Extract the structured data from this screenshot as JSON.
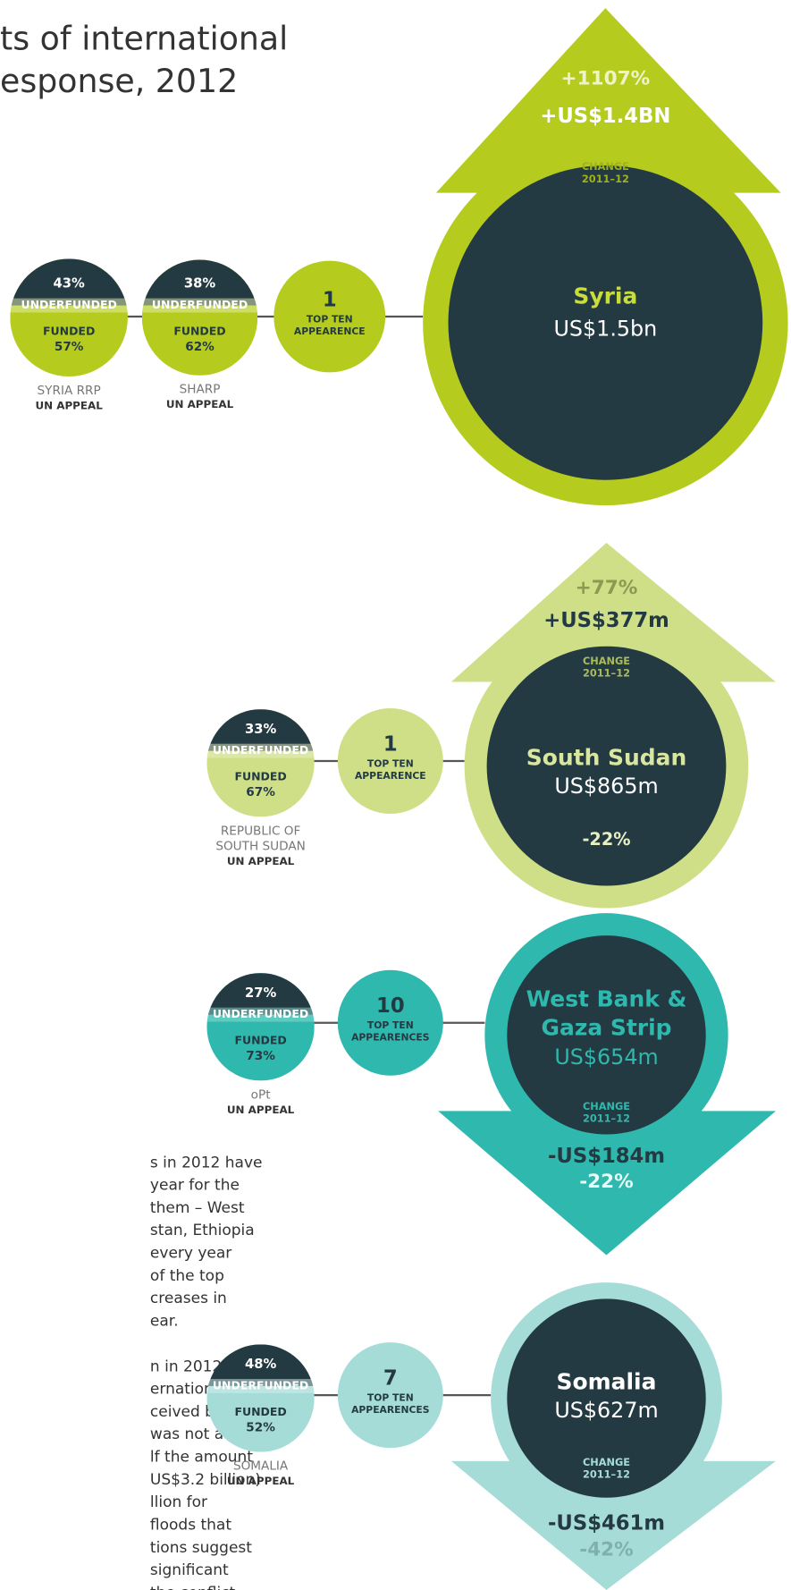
{
  "title": [
    "ts of international",
    "esponse, 2012"
  ],
  "sections": [
    {
      "country": [
        "Syria"
      ],
      "amount": "US$1.5bn",
      "change_pct": "+1107%",
      "change_abs": "+US$1.4BN",
      "change_label": [
        "CHANGE",
        "2011–12"
      ],
      "top_ten": {
        "count": "1",
        "label": [
          "TOP TEN",
          "APPEARENCE"
        ]
      },
      "appeals": [
        {
          "underfunded_pct": "43%",
          "underfunded_label": "UNDERFUNDED",
          "funded_label": "FUNDED",
          "funded_pct": "57%",
          "name": [
            "SYRIA RRP"
          ],
          "type": "UN APPEAL"
        },
        {
          "underfunded_pct": "38%",
          "underfunded_label": "UNDERFUNDED",
          "funded_label": "FUNDED",
          "funded_pct": "62%",
          "name": [
            "SHARP"
          ],
          "type": "UN APPEAL"
        }
      ]
    },
    {
      "country": [
        "South Sudan"
      ],
      "amount": "US$865m",
      "change_pct": "+77%",
      "change_abs": "+US$377m",
      "change_label": [
        "CHANGE",
        "2011–12"
      ],
      "other_pct": "-22%",
      "top_ten": {
        "count": "1",
        "label": [
          "TOP TEN",
          "APPEARENCE"
        ]
      },
      "appeals": [
        {
          "underfunded_pct": "33%",
          "underfunded_label": "UNDERFUNDED",
          "funded_label": "FUNDED",
          "funded_pct": "67%",
          "name": [
            "REPUBLIC OF",
            "SOUTH SUDAN"
          ],
          "type": "UN APPEAL"
        }
      ]
    },
    {
      "country": [
        "West Bank &",
        "Gaza Strip"
      ],
      "amount": "US$654m",
      "change_abs": "-US$184m",
      "change_pct": "-22%",
      "change_label": [
        "CHANGE",
        "2011–12"
      ],
      "top_ten": {
        "count": "10",
        "label": [
          "TOP TEN",
          "APPEARENCES"
        ]
      },
      "appeals": [
        {
          "underfunded_pct": "27%",
          "underfunded_label": "UNDERFUNDED",
          "funded_label": "FUNDED",
          "funded_pct": "73%",
          "name": [
            "oPt"
          ],
          "type": "UN APPEAL"
        }
      ]
    },
    {
      "country": [
        "Somalia"
      ],
      "amount": "US$627m",
      "change_abs": "-US$461m",
      "change_pct": "-42%",
      "change_label": [
        "CHANGE",
        "2011–12"
      ],
      "top_ten": {
        "count": "7",
        "label": [
          "TOP TEN",
          "APPEARENCES"
        ]
      },
      "appeals": [
        {
          "underfunded_pct": "48%",
          "underfunded_label": "UNDERFUNDED",
          "funded_label": "FUNDED",
          "funded_pct": "52%",
          "name": [
            "SOMALIA"
          ],
          "type": "UN APPEAL"
        }
      ]
    }
  ],
  "paragraphs": [
    [
      "s in 2012 have",
      "year for the",
      "them – West",
      "stan, Ethiopia",
      "every year",
      "of the top",
      "creases in",
      "ear."
    ],
    [
      "n in 2012",
      "ernational",
      "ceived by a",
      "was not a",
      "lf the amount",
      "US$3.2 billion)",
      "llion for",
      " floods that",
      "tions suggest",
      "significant",
      "the conflict"
    ]
  ]
}
